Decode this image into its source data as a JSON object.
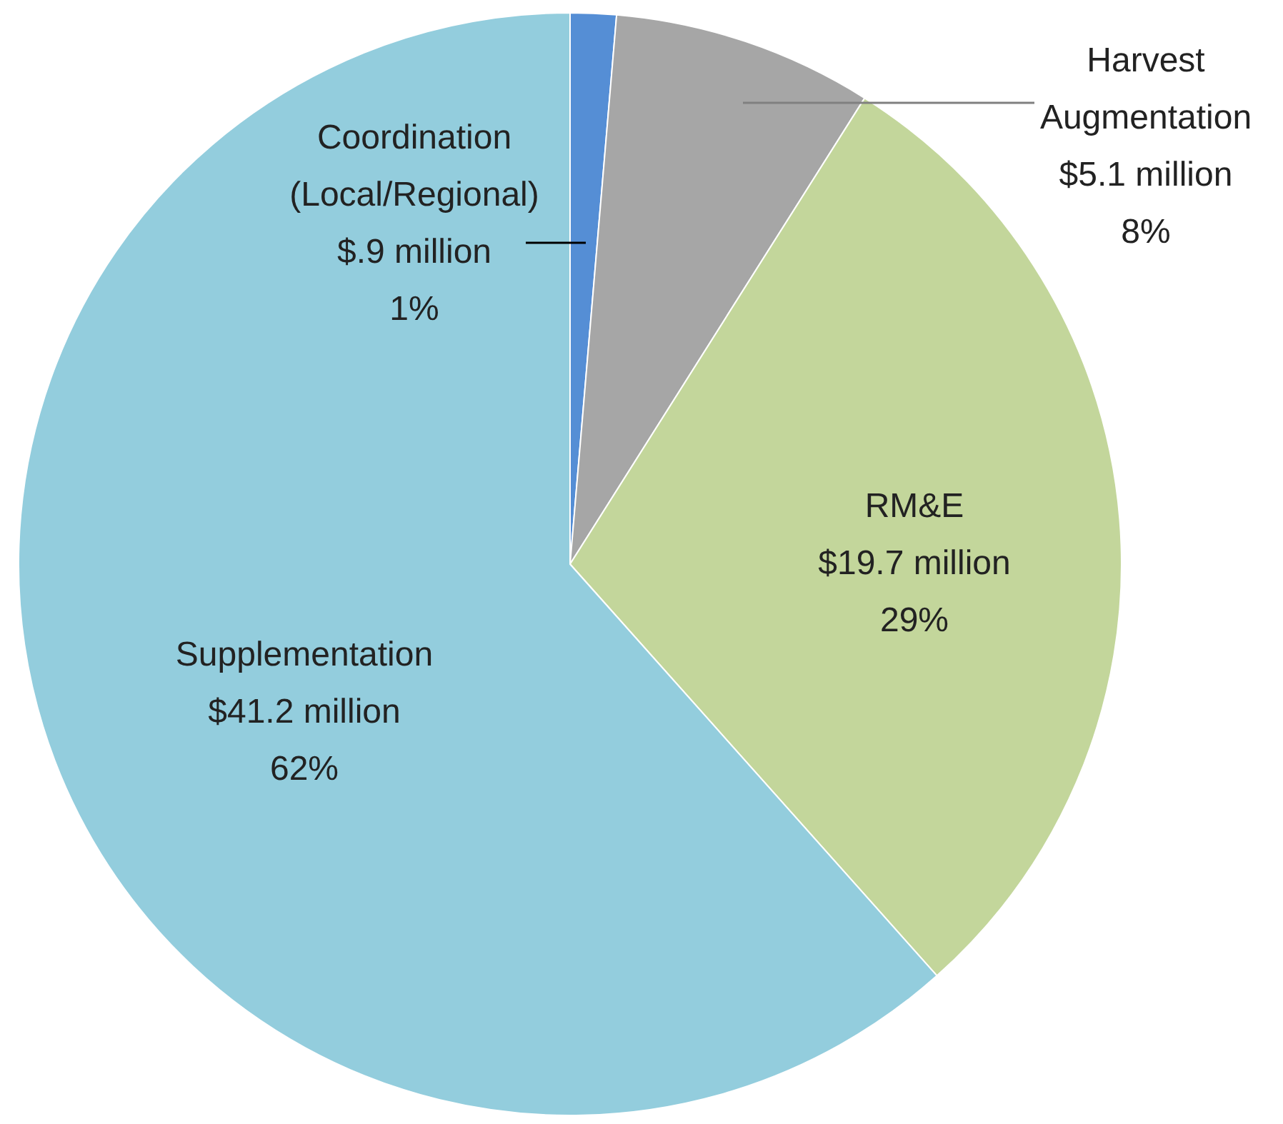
{
  "chart_data": {
    "type": "pie",
    "categories": [
      "Coordination (Local/Regional)",
      "Harvest Augmentation",
      "RM&E",
      "Supplementation"
    ],
    "values": [
      0.9,
      5.1,
      19.7,
      41.2
    ],
    "colors": [
      "#558ed5",
      "#a6a6a6",
      "#c3d69b",
      "#93cddd"
    ],
    "value_labels": [
      "$.9 million",
      "$5.1 million",
      "$19.7 million",
      "$41.2 million"
    ],
    "annotations": [
      "1%",
      "8%",
      "29%",
      "62%"
    ]
  }
}
